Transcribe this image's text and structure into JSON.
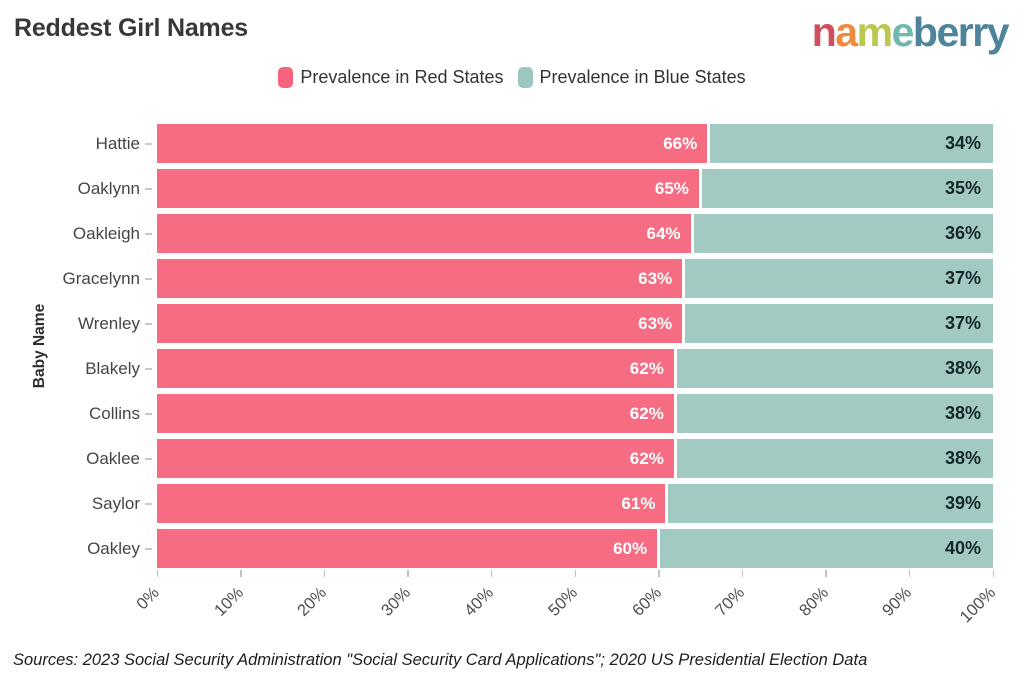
{
  "title": "Reddest Girl Names",
  "logo": {
    "text": "nameberry",
    "letter_colors": [
      "#d04f5e",
      "#ee8b3c",
      "#b9c84f",
      "#6fb8ae",
      "#4d8499",
      "#4d8499",
      "#4d8499",
      "#4d8499",
      "#4d8499"
    ]
  },
  "legend": {
    "items": [
      {
        "label": "Prevalence in Red States",
        "color": "#f5637e"
      },
      {
        "label": "Prevalence in Blue States",
        "color": "#9cc6bf"
      }
    ]
  },
  "chart_data": {
    "type": "bar",
    "orientation": "horizontal-stacked",
    "title": "Reddest Girl Names",
    "ylabel": "Baby Name",
    "xlabel": "",
    "xlim": [
      0,
      100
    ],
    "grid": false,
    "legend_position": "top-center",
    "categories": [
      "Hattie",
      "Oaklynn",
      "Oakleigh",
      "Gracelynn",
      "Wrenley",
      "Blakely",
      "Collins",
      "Oaklee",
      "Saylor",
      "Oakley"
    ],
    "series": [
      {
        "name": "Prevalence in Red States",
        "color": "#f66d83",
        "values": [
          66,
          65,
          64,
          63,
          63,
          62,
          62,
          62,
          61,
          60
        ],
        "labels": [
          "66%",
          "65%",
          "64%",
          "63%",
          "63%",
          "62%",
          "62%",
          "62%",
          "61%",
          "60%"
        ]
      },
      {
        "name": "Prevalence in Blue States",
        "color": "#a2c9c2",
        "values": [
          34,
          35,
          36,
          37,
          37,
          38,
          38,
          38,
          39,
          40
        ],
        "labels": [
          "34%",
          "35%",
          "36%",
          "37%",
          "37%",
          "38%",
          "38%",
          "38%",
          "39%",
          "40%"
        ]
      }
    ],
    "x_ticks": [
      "0%",
      "10%",
      "20%",
      "30%",
      "40%",
      "50%",
      "60%",
      "70%",
      "80%",
      "90%",
      "100%"
    ]
  },
  "source": "Sources: 2023 Social Security Administration \"Social Security Card Applications\"; 2020 US Presidential Election Data"
}
